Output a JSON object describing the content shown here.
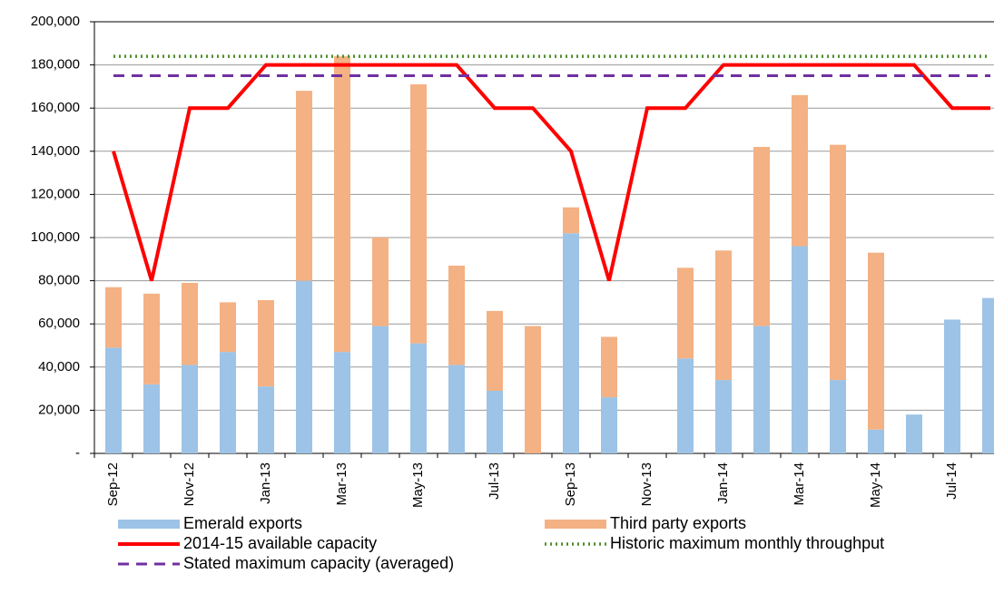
{
  "chart_data": {
    "type": "bar-line",
    "categories": [
      "Sep-12",
      null,
      "Nov-12",
      null,
      "Jan-13",
      null,
      "Mar-13",
      null,
      "May-13",
      null,
      "Jul-13",
      null,
      "Sep-13",
      null,
      "Nov-13",
      null,
      "Jan-14",
      null,
      "Mar-14",
      null,
      "May-14",
      null,
      "Jul-14",
      null
    ],
    "series": [
      {
        "name": "Emerald exports",
        "type": "bar",
        "color": "#9dc3e6",
        "values": [
          49000,
          32000,
          41000,
          47000,
          31000,
          80000,
          47000,
          59000,
          51000,
          41000,
          29000,
          0,
          102000,
          26000,
          0,
          44000,
          34000,
          59000,
          96000,
          34000,
          11000,
          18000,
          62000,
          72000
        ]
      },
      {
        "name": "Third party exports",
        "type": "bar",
        "color": "#f4b183",
        "values": [
          28000,
          42000,
          38000,
          23000,
          40000,
          88000,
          137000,
          41000,
          120000,
          46000,
          37000,
          59000,
          12000,
          28000,
          0,
          42000,
          60000,
          83000,
          70000,
          109000,
          82000,
          0,
          0,
          0
        ]
      },
      {
        "name": "2014-15 available capacity",
        "type": "line",
        "style": "solid",
        "color": "#ff0000",
        "values": [
          140000,
          80000,
          160000,
          160000,
          180000,
          180000,
          180000,
          180000,
          180000,
          180000,
          160000,
          160000,
          140000,
          80000,
          160000,
          160000,
          180000,
          180000,
          180000,
          180000,
          180000,
          180000,
          160000,
          160000
        ]
      },
      {
        "name": "Historic maximum monthly throughput",
        "type": "line",
        "style": "dotted",
        "color": "#4f8f2f",
        "values": [
          184000,
          184000,
          184000,
          184000,
          184000,
          184000,
          184000,
          184000,
          184000,
          184000,
          184000,
          184000,
          184000,
          184000,
          184000,
          184000,
          184000,
          184000,
          184000,
          184000,
          184000,
          184000,
          184000,
          184000
        ]
      },
      {
        "name": "Stated maximum capacity (averaged)",
        "type": "line",
        "style": "dashed",
        "color": "#7030a0",
        "values": [
          175000,
          175000,
          175000,
          175000,
          175000,
          175000,
          175000,
          175000,
          175000,
          175000,
          175000,
          175000,
          175000,
          175000,
          175000,
          175000,
          175000,
          175000,
          175000,
          175000,
          175000,
          175000,
          175000,
          175000
        ]
      }
    ],
    "stacked": true,
    "ylim": [
      0,
      200000
    ],
    "yticks": [
      {
        "value": 0,
        "label": "-"
      },
      {
        "value": 20000,
        "label": "20,000"
      },
      {
        "value": 40000,
        "label": "40,000"
      },
      {
        "value": 60000,
        "label": "60,000"
      },
      {
        "value": 80000,
        "label": "80,000"
      },
      {
        "value": 100000,
        "label": "100,000"
      },
      {
        "value": 120000,
        "label": "120,000"
      },
      {
        "value": 140000,
        "label": "140,000"
      },
      {
        "value": 160000,
        "label": "160,000"
      },
      {
        "value": 180000,
        "label": "180,000"
      },
      {
        "value": 200000,
        "label": "200,000"
      }
    ],
    "grid": true,
    "legend": "bottom"
  }
}
